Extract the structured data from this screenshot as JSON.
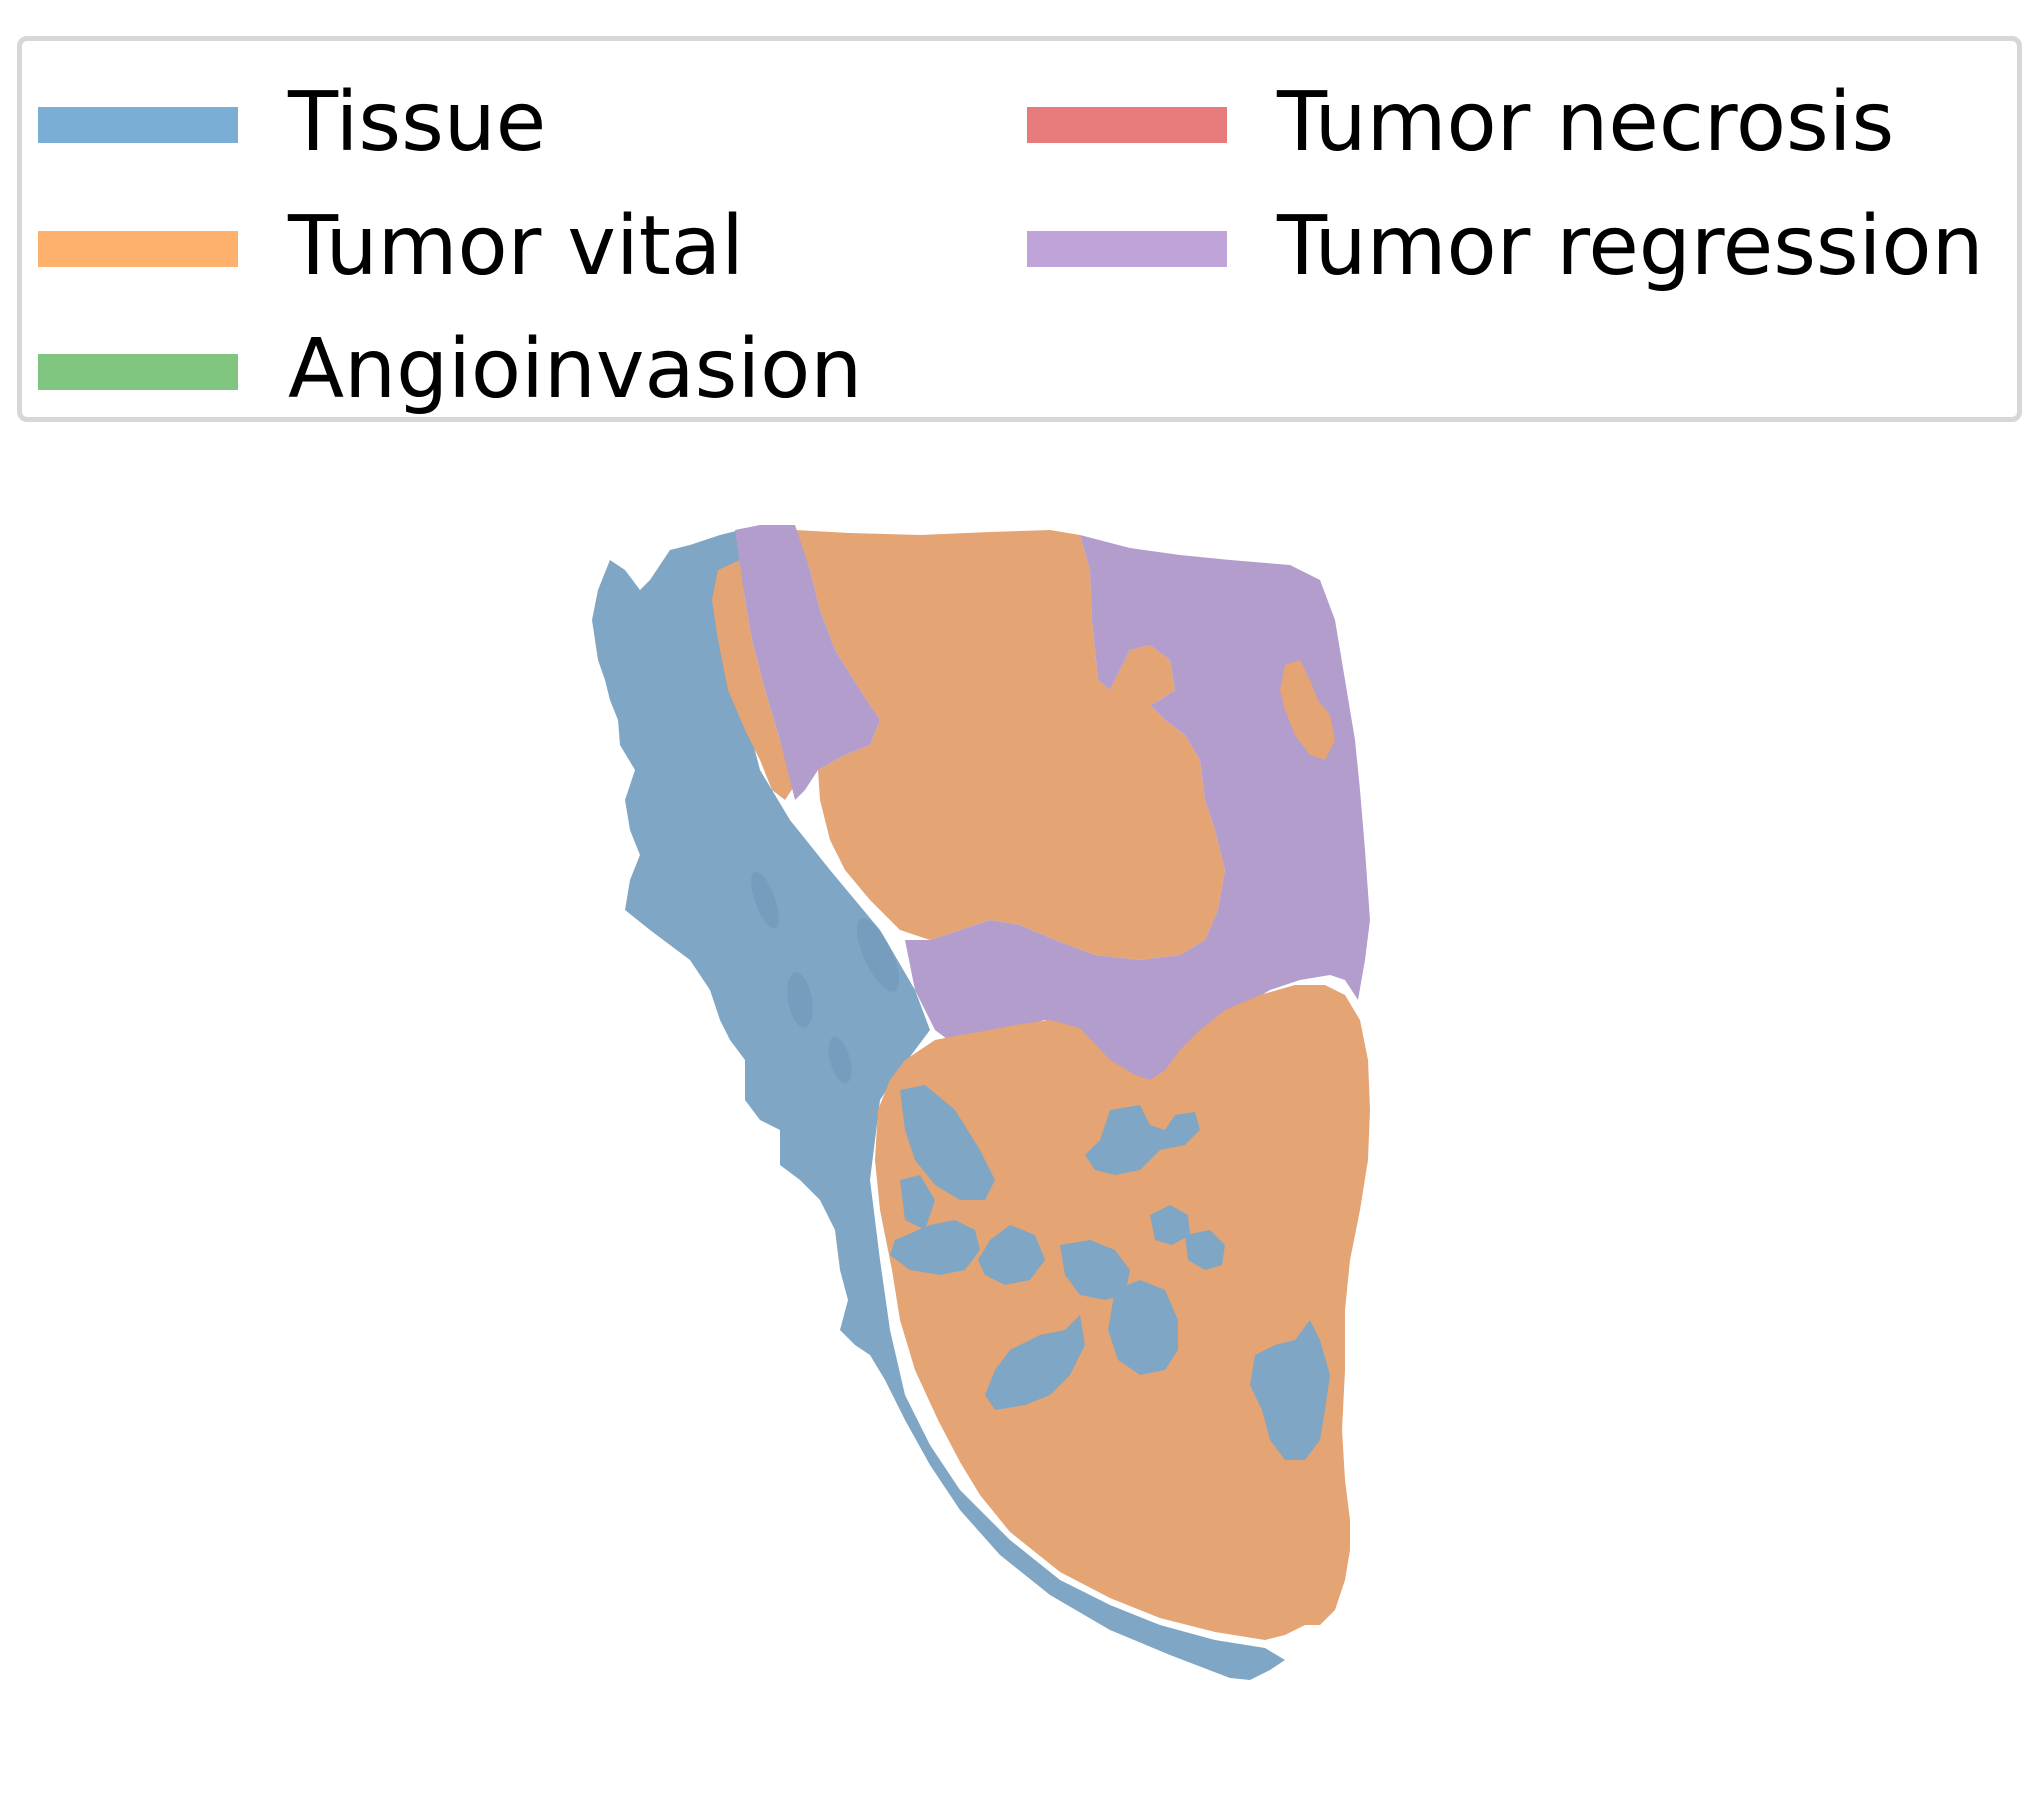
{
  "legend": {
    "items": [
      {
        "label": "Tissue",
        "color": "#7aaed4"
      },
      {
        "label": "Tumor vital",
        "color": "#fdb16c"
      },
      {
        "label": "Angioinvasion",
        "color": "#80c680"
      },
      {
        "label": "Tumor necrosis",
        "color": "#e77b7c"
      },
      {
        "label": "Tumor regression",
        "color": "#c0a3d8"
      }
    ]
  },
  "specimen": {
    "colors": {
      "tissue": "#7fa6c4",
      "tumor_vital": "#e4a474",
      "tumor_regression": "#b29dcc"
    }
  }
}
